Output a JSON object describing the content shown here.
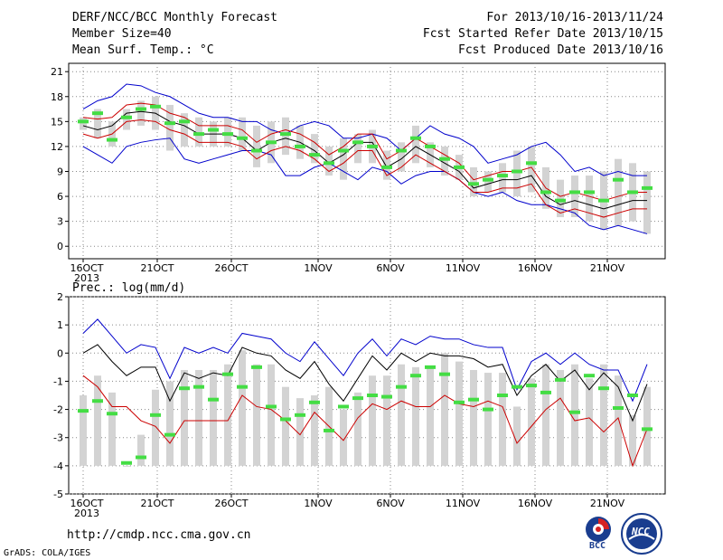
{
  "header": {
    "title": "DERF/NCC/BCC Monthly Forecast",
    "member_size": "Member Size=40",
    "variable": "Mean Surf. Temp.: °C",
    "forecast_for": "For 2013/10/16-2013/11/24",
    "fcst_started": "Fcst Started Refer Date 2013/10/15",
    "fcst_produced": "Fcst Produced Date 2013/10/16"
  },
  "footer": {
    "url": "http://cmdp.ncc.cma.gov.cn",
    "grads": "GrADS: COLA/IGES",
    "logo_bcc": "BCC",
    "logo_ncc": "NCC"
  },
  "colors": {
    "max": "#0000cc",
    "min": "#cc0000",
    "mean": "#000000",
    "obs": "#44dd44",
    "spread": "#d3d3d3",
    "grid": "#888888"
  },
  "chart_data": [
    {
      "type": "line",
      "panel": "temperature",
      "ylabel": "Mean Surf. Temp.: °C",
      "ylim": [
        -1.5,
        22
      ],
      "yticks": [
        0,
        3,
        6,
        9,
        12,
        15,
        18,
        21
      ],
      "x_start": "2013-10-16",
      "x_tick_labels": [
        "16OCT\n2013",
        "21OCT",
        "26OCT",
        "1NOV",
        "6NOV",
        "11NOV",
        "16NOV",
        "21NOV"
      ],
      "grid": true,
      "series": [
        {
          "name": "max",
          "values": [
            12.0,
            11.0,
            10.0,
            12.0,
            12.5,
            12.8,
            13.0,
            10.5,
            10.0,
            10.5,
            11.0,
            11.5,
            11.5,
            11.0,
            8.5,
            8.5,
            9.5,
            10.0,
            9.0,
            8.0,
            9.5,
            9.0,
            7.5,
            8.5,
            9.0,
            9.0,
            8.0,
            6.5,
            6.0,
            6.5,
            5.5,
            5.0,
            5.0,
            4.5,
            4.0,
            2.5,
            2.0,
            2.5,
            2.0,
            1.5
          ]
        },
        {
          "name": "min_line_upper",
          "values": [
            16.5,
            17.5,
            18.0,
            19.5,
            19.3,
            18.5,
            18.0,
            17.0,
            16.0,
            15.5,
            15.5,
            15.0,
            15.0,
            14.0,
            13.5,
            14.5,
            15.0,
            14.5,
            13.0,
            13.0,
            13.5,
            13.0,
            11.5,
            13.0,
            14.5,
            13.5,
            13.0,
            12.0,
            10.0,
            10.5,
            11.0,
            12.0,
            12.5,
            11.0,
            9.0,
            9.5,
            8.5,
            9.0,
            8.5,
            8.5
          ]
        },
        {
          "name": "mean",
          "values": [
            14.5,
            14.0,
            14.5,
            16.0,
            16.2,
            16.0,
            15.0,
            14.5,
            13.5,
            13.5,
            13.5,
            13.0,
            11.5,
            12.5,
            13.0,
            12.5,
            11.5,
            10.0,
            11.0,
            12.5,
            12.5,
            9.5,
            10.5,
            12.0,
            11.0,
            10.0,
            9.0,
            7.0,
            7.5,
            8.0,
            8.0,
            8.5,
            6.0,
            5.0,
            5.5,
            5.0,
            4.5,
            5.0,
            5.5,
            5.5
          ]
        },
        {
          "name": "upper_red",
          "values": [
            15.5,
            15.3,
            15.5,
            17.0,
            17.2,
            17.0,
            16.0,
            15.5,
            14.5,
            14.5,
            14.5,
            14.0,
            12.5,
            13.5,
            14.0,
            13.5,
            12.5,
            11.0,
            12.0,
            13.5,
            13.5,
            10.5,
            11.5,
            13.0,
            12.0,
            11.0,
            10.0,
            8.0,
            8.5,
            9.0,
            9.0,
            9.5,
            7.0,
            6.0,
            6.5,
            6.0,
            5.5,
            6.0,
            6.5,
            6.5
          ]
        },
        {
          "name": "lower_red",
          "values": [
            13.5,
            13.0,
            13.5,
            15.0,
            15.2,
            15.0,
            14.0,
            13.5,
            12.5,
            12.5,
            12.5,
            12.0,
            10.5,
            11.5,
            12.0,
            11.5,
            10.5,
            9.0,
            10.0,
            11.5,
            11.5,
            8.5,
            9.5,
            11.0,
            10.0,
            9.0,
            8.0,
            6.5,
            6.5,
            7.0,
            7.0,
            7.5,
            5.0,
            4.0,
            4.5,
            4.0,
            3.5,
            4.0,
            4.5,
            4.5
          ]
        }
      ],
      "spread_low": [
        14.0,
        13.0,
        12.0,
        14.0,
        14.5,
        14.0,
        11.5,
        12.0,
        12.0,
        12.0,
        12.0,
        11.5,
        9.5,
        10.0,
        11.0,
        10.5,
        10.0,
        8.5,
        8.0,
        10.0,
        10.0,
        8.0,
        9.0,
        10.0,
        9.5,
        8.5,
        8.0,
        6.0,
        6.5,
        6.5,
        6.0,
        6.5,
        4.5,
        3.5,
        3.5,
        3.0,
        2.0,
        2.5,
        3.0,
        1.5
      ],
      "spread_high": [
        15.5,
        16.5,
        15.0,
        16.5,
        17.5,
        18.0,
        17.0,
        16.0,
        15.5,
        15.0,
        15.5,
        15.5,
        14.5,
        15.0,
        15.5,
        14.5,
        13.5,
        12.0,
        13.0,
        13.5,
        14.0,
        11.5,
        12.5,
        14.5,
        12.5,
        12.0,
        11.0,
        9.5,
        9.0,
        10.0,
        11.5,
        12.0,
        9.5,
        8.0,
        8.5,
        8.5,
        9.0,
        10.5,
        10.0,
        9.0
      ],
      "observed": [
        15.0,
        16.0,
        12.8,
        15.5,
        16.5,
        16.8,
        14.8,
        15.0,
        13.5,
        14.0,
        13.5,
        13.0,
        11.5,
        12.5,
        13.5,
        12.0,
        11.0,
        10.0,
        11.5,
        12.5,
        12.0,
        9.5,
        11.5,
        13.0,
        12.0,
        10.5,
        9.5,
        7.5,
        8.0,
        8.5,
        9.0,
        10.0,
        6.5,
        5.5,
        6.5,
        6.5,
        5.5,
        8.0,
        6.5,
        7.0
      ]
    },
    {
      "type": "line",
      "panel": "precipitation",
      "ylabel": "Prec.: log(mm/d)",
      "ylim": [
        -5,
        2
      ],
      "yticks": [
        -5,
        -4,
        -3,
        -2,
        -1,
        0,
        1,
        2
      ],
      "x_start": "2013-10-16",
      "x_tick_labels": [
        "16OCT\n2013",
        "21OCT",
        "26OCT",
        "1NOV",
        "6NOV",
        "11NOV",
        "16NOV",
        "21NOV"
      ],
      "grid": true,
      "series": [
        {
          "name": "max",
          "values": [
            0.7,
            1.2,
            0.6,
            0.0,
            0.3,
            0.2,
            -0.9,
            0.2,
            0.0,
            0.2,
            0.0,
            0.7,
            0.6,
            0.5,
            0.0,
            -0.3,
            0.4,
            -0.2,
            -0.8,
            0.0,
            0.5,
            -0.1,
            0.5,
            0.3,
            0.6,
            0.5,
            0.5,
            0.3,
            0.2,
            0.2,
            -1.3,
            -0.3,
            0.0,
            -0.4,
            0.0,
            -0.4,
            -0.6,
            -0.6,
            -1.7,
            -0.4
          ]
        },
        {
          "name": "mean",
          "values": [
            0.0,
            0.3,
            -0.3,
            -0.8,
            -0.5,
            -0.5,
            -1.7,
            -0.7,
            -0.9,
            -0.7,
            -0.8,
            0.2,
            0.0,
            -0.1,
            -0.6,
            -0.9,
            -0.3,
            -1.1,
            -1.7,
            -0.9,
            -0.1,
            -0.6,
            0.0,
            -0.3,
            0.0,
            -0.1,
            -0.1,
            -0.2,
            -0.5,
            -0.4,
            -1.5,
            -0.8,
            -0.4,
            -1.0,
            -0.6,
            -1.3,
            -0.7,
            -1.2,
            -2.4,
            -1.1
          ]
        },
        {
          "name": "low",
          "values": [
            -0.8,
            -1.2,
            -1.9,
            -1.9,
            -2.4,
            -2.6,
            -3.2,
            -2.4,
            -2.4,
            -2.4,
            -2.4,
            -1.5,
            -1.9,
            -2.0,
            -2.4,
            -2.9,
            -2.1,
            -2.6,
            -3.1,
            -2.3,
            -1.8,
            -2.0,
            -1.7,
            -1.9,
            -1.9,
            -1.5,
            -1.8,
            -1.9,
            -1.7,
            -1.9,
            -3.2,
            -2.6,
            -2.0,
            -1.6,
            -2.4,
            -2.3,
            -2.8,
            -2.3,
            -4.0,
            -2.7
          ]
        }
      ],
      "spread_low": [
        -4.0,
        -4.0,
        -4.0,
        -4.0,
        -4.0,
        -4.0,
        -4.0,
        -4.0,
        -4.0,
        -4.0,
        -4.0,
        -4.0,
        -4.0,
        -4.0,
        -4.0,
        -4.0,
        -4.0,
        -4.0,
        -4.0,
        -4.0,
        -4.0,
        -4.0,
        -4.0,
        -4.0,
        -4.0,
        -4.0,
        -4.0,
        -4.0,
        -4.0,
        -4.0,
        -4.0,
        -4.0,
        -4.0,
        -4.0,
        -4.0,
        -4.0,
        -4.0,
        -4.0,
        -4.0,
        -4.0
      ],
      "spread_high": [
        -1.5,
        -0.8,
        -1.4,
        -4.0,
        -2.9,
        -1.3,
        -1.0,
        -0.6,
        -0.6,
        -0.6,
        -0.4,
        0.1,
        -0.4,
        -0.4,
        -1.2,
        -1.6,
        -1.5,
        -1.2,
        -2.0,
        -1.4,
        -0.8,
        -0.8,
        -0.4,
        -0.5,
        -0.5,
        0.0,
        -0.3,
        -0.6,
        -0.7,
        -0.7,
        -1.9,
        -0.9,
        -0.4,
        -0.6,
        -0.4,
        -0.9,
        -0.4,
        -0.8,
        -2.2,
        -1.2
      ],
      "observed": [
        -2.05,
        -1.7,
        -2.15,
        -3.9,
        -3.7,
        -2.2,
        -2.9,
        -1.25,
        -1.2,
        -1.65,
        -0.75,
        -1.2,
        -0.5,
        -1.9,
        -2.35,
        -2.2,
        -1.75,
        -2.75,
        -1.9,
        -1.6,
        -1.5,
        -1.55,
        -1.2,
        -0.8,
        -0.5,
        -0.75,
        -1.75,
        -1.65,
        -2.0,
        -1.5,
        -1.2,
        -1.15,
        -1.4,
        -0.95,
        -2.1,
        -0.8,
        -1.25,
        -1.95,
        -1.5,
        -2.7
      ]
    }
  ]
}
